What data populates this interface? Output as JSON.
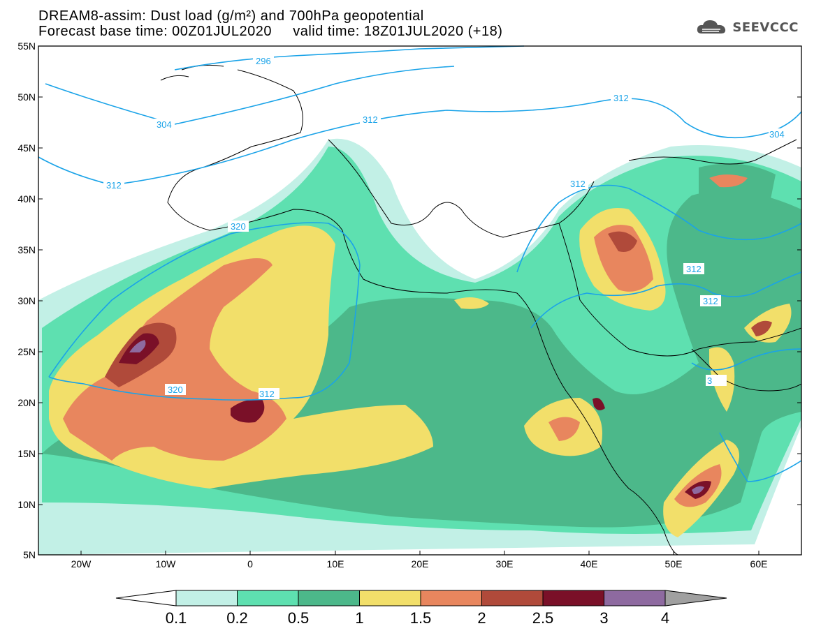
{
  "title_line1": "DREAM8-assim: Dust load (g/m²) and 700hPa geopotential",
  "title_line2": "Forecast base time: 00Z01JUL2020     valid time: 18Z01JUL2020 (+18)",
  "logo_text": "SEEVCCC",
  "lat_labels": [
    "55N",
    "50N",
    "45N",
    "40N",
    "35N",
    "30N",
    "25N",
    "20N",
    "15N",
    "10N",
    "5N"
  ],
  "lon_labels": [
    "20W",
    "10W",
    "0",
    "10E",
    "20E",
    "30E",
    "40E",
    "50E",
    "60E"
  ],
  "contour_labels": [
    "296",
    "304",
    "312",
    "312",
    "320",
    "320",
    "312",
    "312",
    "312",
    "312",
    "312",
    "304",
    "3"
  ],
  "colorbar": {
    "levels": [
      "0.1",
      "0.2",
      "0.5",
      "1",
      "1.5",
      "2",
      "2.5",
      "3",
      "4"
    ],
    "colors": [
      "#c2f0e6",
      "#5ee0b0",
      "#4cb88a",
      "#f2df6a",
      "#e8865e",
      "#b04a3a",
      "#7a1028",
      "#8e6aa0"
    ],
    "under_color": "#ffffff",
    "over_color": "#a0a0a0"
  },
  "map_extent": {
    "lon": [
      -25,
      65
    ],
    "lat": [
      5,
      55
    ]
  }
}
